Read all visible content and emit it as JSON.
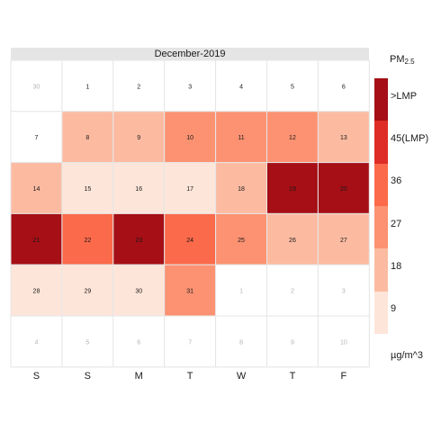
{
  "chart_data": {
    "type": "heatmap",
    "title": "December-2019",
    "day_labels": [
      "S",
      "S",
      "M",
      "T",
      "W",
      "T",
      "F"
    ],
    "legend": {
      "title": "PM",
      "title_sub": "2.5",
      "unit": "µg/m^3",
      "bins": [
        {
          "color": "#fee5d9"
        },
        {
          "color": "#fcbba1"
        },
        {
          "color": "#fc9272"
        },
        {
          "color": "#fb6a4a"
        },
        {
          "color": "#de2d26"
        },
        {
          "color": "#a50f15"
        }
      ],
      "labels": [
        "9",
        "18",
        "27",
        "36",
        "45(LMP)",
        ">LMP"
      ]
    },
    "weeks": [
      [
        {
          "day": "30",
          "in_month": false,
          "bin": null
        },
        {
          "day": "1",
          "in_month": true,
          "bin": null
        },
        {
          "day": "2",
          "in_month": true,
          "bin": null
        },
        {
          "day": "3",
          "in_month": true,
          "bin": null
        },
        {
          "day": "4",
          "in_month": true,
          "bin": null
        },
        {
          "day": "5",
          "in_month": true,
          "bin": null
        },
        {
          "day": "6",
          "in_month": true,
          "bin": null
        }
      ],
      [
        {
          "day": "7",
          "in_month": true,
          "bin": null
        },
        {
          "day": "8",
          "in_month": true,
          "bin": 1
        },
        {
          "day": "9",
          "in_month": true,
          "bin": 1
        },
        {
          "day": "10",
          "in_month": true,
          "bin": 2
        },
        {
          "day": "11",
          "in_month": true,
          "bin": 2
        },
        {
          "day": "12",
          "in_month": true,
          "bin": 2
        },
        {
          "day": "13",
          "in_month": true,
          "bin": 1
        }
      ],
      [
        {
          "day": "14",
          "in_month": true,
          "bin": 1
        },
        {
          "day": "15",
          "in_month": true,
          "bin": 0
        },
        {
          "day": "16",
          "in_month": true,
          "bin": 0
        },
        {
          "day": "17",
          "in_month": true,
          "bin": 0
        },
        {
          "day": "18",
          "in_month": true,
          "bin": 1
        },
        {
          "day": "19",
          "in_month": true,
          "bin": 5
        },
        {
          "day": "20",
          "in_month": true,
          "bin": 5
        }
      ],
      [
        {
          "day": "21",
          "in_month": true,
          "bin": 5
        },
        {
          "day": "22",
          "in_month": true,
          "bin": 3
        },
        {
          "day": "23",
          "in_month": true,
          "bin": 5
        },
        {
          "day": "24",
          "in_month": true,
          "bin": 3
        },
        {
          "day": "25",
          "in_month": true,
          "bin": 2
        },
        {
          "day": "26",
          "in_month": true,
          "bin": 1
        },
        {
          "day": "27",
          "in_month": true,
          "bin": 1
        }
      ],
      [
        {
          "day": "28",
          "in_month": true,
          "bin": 0
        },
        {
          "day": "29",
          "in_month": true,
          "bin": 0
        },
        {
          "day": "30",
          "in_month": true,
          "bin": 0
        },
        {
          "day": "31",
          "in_month": true,
          "bin": 2
        },
        {
          "day": "1",
          "in_month": false,
          "bin": null
        },
        {
          "day": "2",
          "in_month": false,
          "bin": null
        },
        {
          "day": "3",
          "in_month": false,
          "bin": null
        }
      ],
      [
        {
          "day": "4",
          "in_month": false,
          "bin": null
        },
        {
          "day": "5",
          "in_month": false,
          "bin": null
        },
        {
          "day": "6",
          "in_month": false,
          "bin": null
        },
        {
          "day": "7",
          "in_month": false,
          "bin": null
        },
        {
          "day": "8",
          "in_month": false,
          "bin": null
        },
        {
          "day": "9",
          "in_month": false,
          "bin": null
        },
        {
          "day": "10",
          "in_month": false,
          "bin": null
        }
      ]
    ]
  }
}
